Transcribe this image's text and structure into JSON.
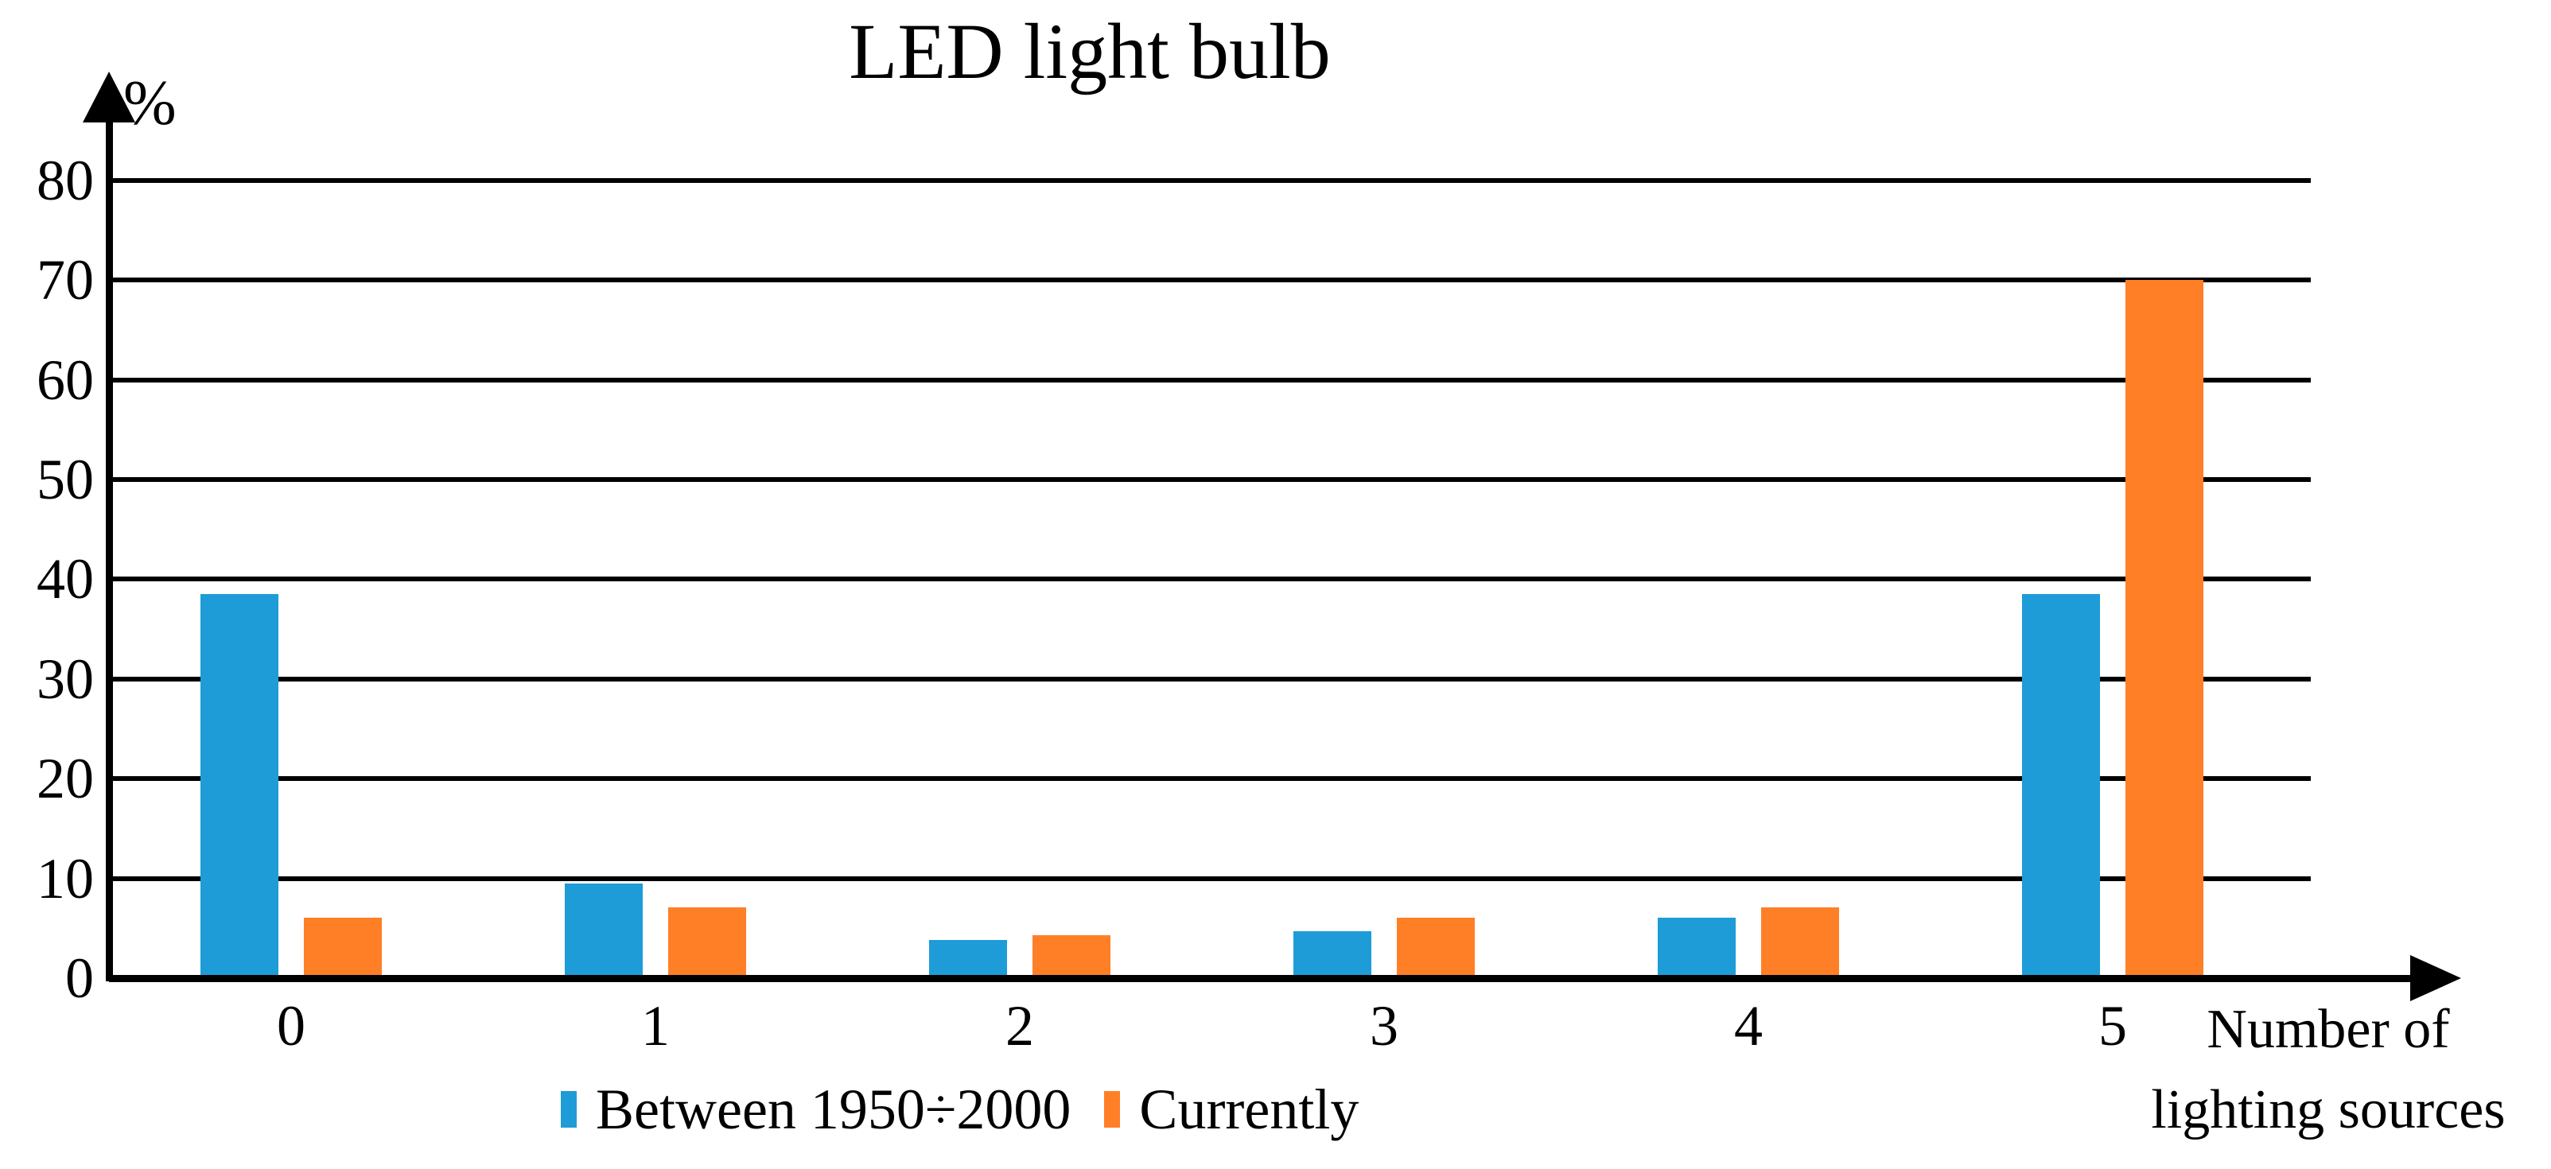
{
  "chart_data": {
    "type": "bar",
    "title": "LED light bulb",
    "y_axis_label": "%",
    "x_axis_label_line1": "Number of",
    "x_axis_label_line2": "lighting sources",
    "categories": [
      "0",
      "1",
      "2",
      "3",
      "4",
      "5"
    ],
    "series": [
      {
        "name": "Between 1950÷2000",
        "color": "#1E9CD7",
        "values": [
          38.5,
          9.5,
          3.8,
          4.7,
          6.1,
          38.5
        ]
      },
      {
        "name": "Currently",
        "color": "#FF7F27",
        "values": [
          6.1,
          7.1,
          4.3,
          6.1,
          7.1,
          70
        ]
      }
    ],
    "y_ticks": [
      0,
      10,
      20,
      30,
      40,
      50,
      60,
      70,
      80
    ],
    "ylim": [
      0,
      88
    ],
    "grid": "horizontal",
    "gridline_color": "#000000",
    "axis_color": "#000000",
    "legend_position": "bottom"
  }
}
